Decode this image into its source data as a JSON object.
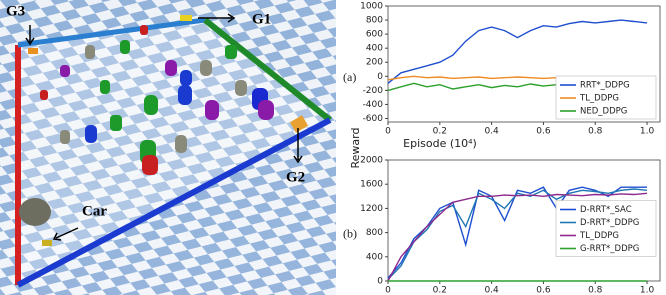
{
  "scene": {
    "goal_labels": [
      "G3",
      "G1",
      "G2"
    ],
    "car_label": "Car"
  },
  "chart_data": [
    {
      "type": "line",
      "panel_label": "(a)",
      "xlabel": "Episode (10⁴)",
      "ylabel": "Reward",
      "legend": "lower right",
      "xlim": [
        0,
        1.05
      ],
      "xticks": [
        0,
        0.2,
        0.4,
        0.6,
        0.8,
        {
          "value": 1,
          "label": "1.0"
        }
      ],
      "ylim": [
        -650,
        1000
      ],
      "yticks": [
        -600,
        -400,
        -200,
        0,
        200,
        400,
        600,
        800,
        1000
      ],
      "x": [
        0,
        0.05,
        0.1,
        0.15,
        0.2,
        0.25,
        0.3,
        0.35,
        0.4,
        0.45,
        0.5,
        0.55,
        0.6,
        0.65,
        0.7,
        0.75,
        0.8,
        0.85,
        0.9,
        0.95,
        1.0
      ],
      "series": [
        {
          "name": "RRT*_DDPG",
          "color": "#1f4fd0",
          "values": [
            -100,
            50,
            100,
            150,
            200,
            300,
            500,
            650,
            700,
            650,
            550,
            650,
            720,
            700,
            750,
            780,
            760,
            780,
            800,
            780,
            760
          ]
        },
        {
          "name": "TL_DDPG",
          "color": "#f08a24",
          "values": [
            -50,
            -20,
            0,
            -20,
            -10,
            -30,
            -20,
            -10,
            -30,
            -20,
            -10,
            -20,
            -30,
            -20,
            -10,
            -20,
            -30,
            -20,
            -10,
            -20,
            -20
          ]
        },
        {
          "name": "NED_DDPG",
          "color": "#2ca02c",
          "values": [
            -200,
            -150,
            -100,
            -150,
            -120,
            -180,
            -150,
            -120,
            -160,
            -130,
            -150,
            -110,
            -140,
            -120,
            -100,
            -130,
            -110,
            -90,
            -120,
            -100,
            -100
          ]
        }
      ]
    },
    {
      "type": "line",
      "panel_label": "(b)",
      "legend": "center right",
      "xlim": [
        0,
        1.05
      ],
      "xticks": [
        0,
        0.2,
        0.4,
        0.6,
        0.8,
        {
          "value": 1,
          "label": "1.0"
        }
      ],
      "ylim": [
        0,
        2000
      ],
      "yticks": [
        0,
        400,
        800,
        1200,
        1600,
        2000
      ],
      "x": [
        0,
        0.05,
        0.1,
        0.15,
        0.2,
        0.25,
        0.3,
        0.35,
        0.4,
        0.45,
        0.5,
        0.55,
        0.6,
        0.65,
        0.7,
        0.75,
        0.8,
        0.85,
        0.9,
        0.95,
        1.0
      ],
      "series": [
        {
          "name": "D-RRT*_SAC",
          "color": "#1f4fd0",
          "values": [
            50,
            300,
            700,
            900,
            1200,
            1300,
            600,
            1500,
            1400,
            1000,
            1500,
            1450,
            1550,
            1200,
            1500,
            1550,
            1500,
            1400,
            1550,
            1550,
            1550
          ]
        },
        {
          "name": "D-RRT*_DDPG",
          "color": "#1f77b4",
          "values": [
            30,
            250,
            650,
            850,
            1150,
            1250,
            900,
            1450,
            1350,
            1200,
            1450,
            1400,
            1500,
            1350,
            1450,
            1500,
            1480,
            1450,
            1500,
            1520,
            1500
          ]
        },
        {
          "name": "TL_DDPG",
          "color": "#8e2a8e",
          "values": [
            0,
            400,
            650,
            900,
            1100,
            1300,
            1350,
            1400,
            1400,
            1420,
            1410,
            1420,
            1400,
            1430,
            1420,
            1410,
            1430,
            1420,
            1440,
            1430,
            1450
          ]
        },
        {
          "name": "G-RRT*_DDPG",
          "color": "#2ca02c",
          "values": [
            0,
            0,
            0,
            0,
            0,
            0,
            0,
            0,
            0,
            0,
            0,
            0,
            0,
            0,
            0,
            0,
            0,
            0,
            0,
            0,
            0
          ]
        }
      ]
    }
  ]
}
